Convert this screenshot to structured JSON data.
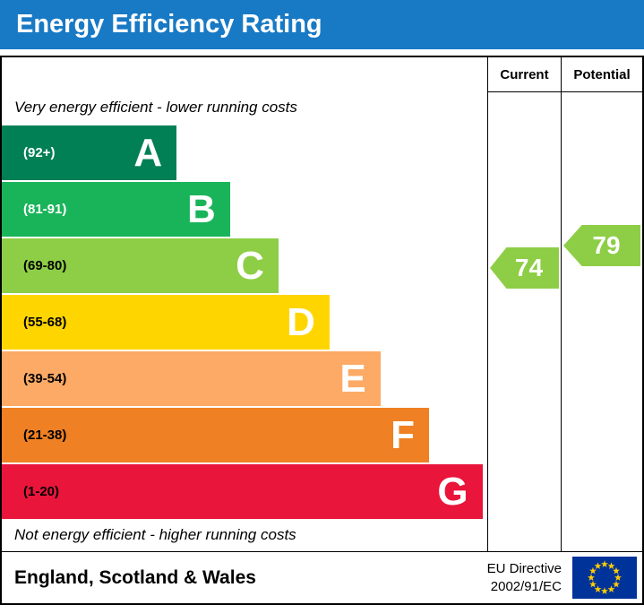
{
  "title": "Energy Efficiency Rating",
  "columns": {
    "current": "Current",
    "potential": "Potential"
  },
  "footer": {
    "region": "England, Scotland & Wales",
    "directive_line1": "EU Directive",
    "directive_line2": "2002/91/EC"
  },
  "colors": {
    "banner_blue": "#1879c4",
    "eu_blue": "#003399",
    "eu_star": "#ffcc00",
    "arrow_green": "#8dce46"
  },
  "chart_data": {
    "type": "bar",
    "title": "Energy Efficiency Rating",
    "top_note": "Very energy efficient - lower running costs",
    "bottom_note": "Not energy efficient - higher running costs",
    "legend_position": "none",
    "grid": false,
    "bands": [
      {
        "letter": "A",
        "range_label": "(92+)",
        "min": 92,
        "max": 100,
        "color": "#008054",
        "text_color": "#ffffff",
        "width_pct": 36
      },
      {
        "letter": "B",
        "range_label": "(81-91)",
        "min": 81,
        "max": 91,
        "color": "#19b459",
        "text_color": "#ffffff",
        "width_pct": 47
      },
      {
        "letter": "C",
        "range_label": "(69-80)",
        "min": 69,
        "max": 80,
        "color": "#8dce46",
        "text_color": "#000000",
        "width_pct": 57
      },
      {
        "letter": "D",
        "range_label": "(55-68)",
        "min": 55,
        "max": 68,
        "color": "#ffd500",
        "text_color": "#000000",
        "width_pct": 67.5
      },
      {
        "letter": "E",
        "range_label": "(39-54)",
        "min": 39,
        "max": 54,
        "color": "#fcaa65",
        "text_color": "#000000",
        "width_pct": 78
      },
      {
        "letter": "F",
        "range_label": "(21-38)",
        "min": 21,
        "max": 38,
        "color": "#ef8023",
        "text_color": "#000000",
        "width_pct": 88
      },
      {
        "letter": "G",
        "range_label": "(1-20)",
        "min": 1,
        "max": 20,
        "color": "#e9153b",
        "text_color": "#000000",
        "width_pct": 99
      }
    ],
    "current": {
      "value": 74,
      "color": "#8dce46"
    },
    "potential": {
      "value": 79,
      "color": "#8dce46"
    }
  }
}
